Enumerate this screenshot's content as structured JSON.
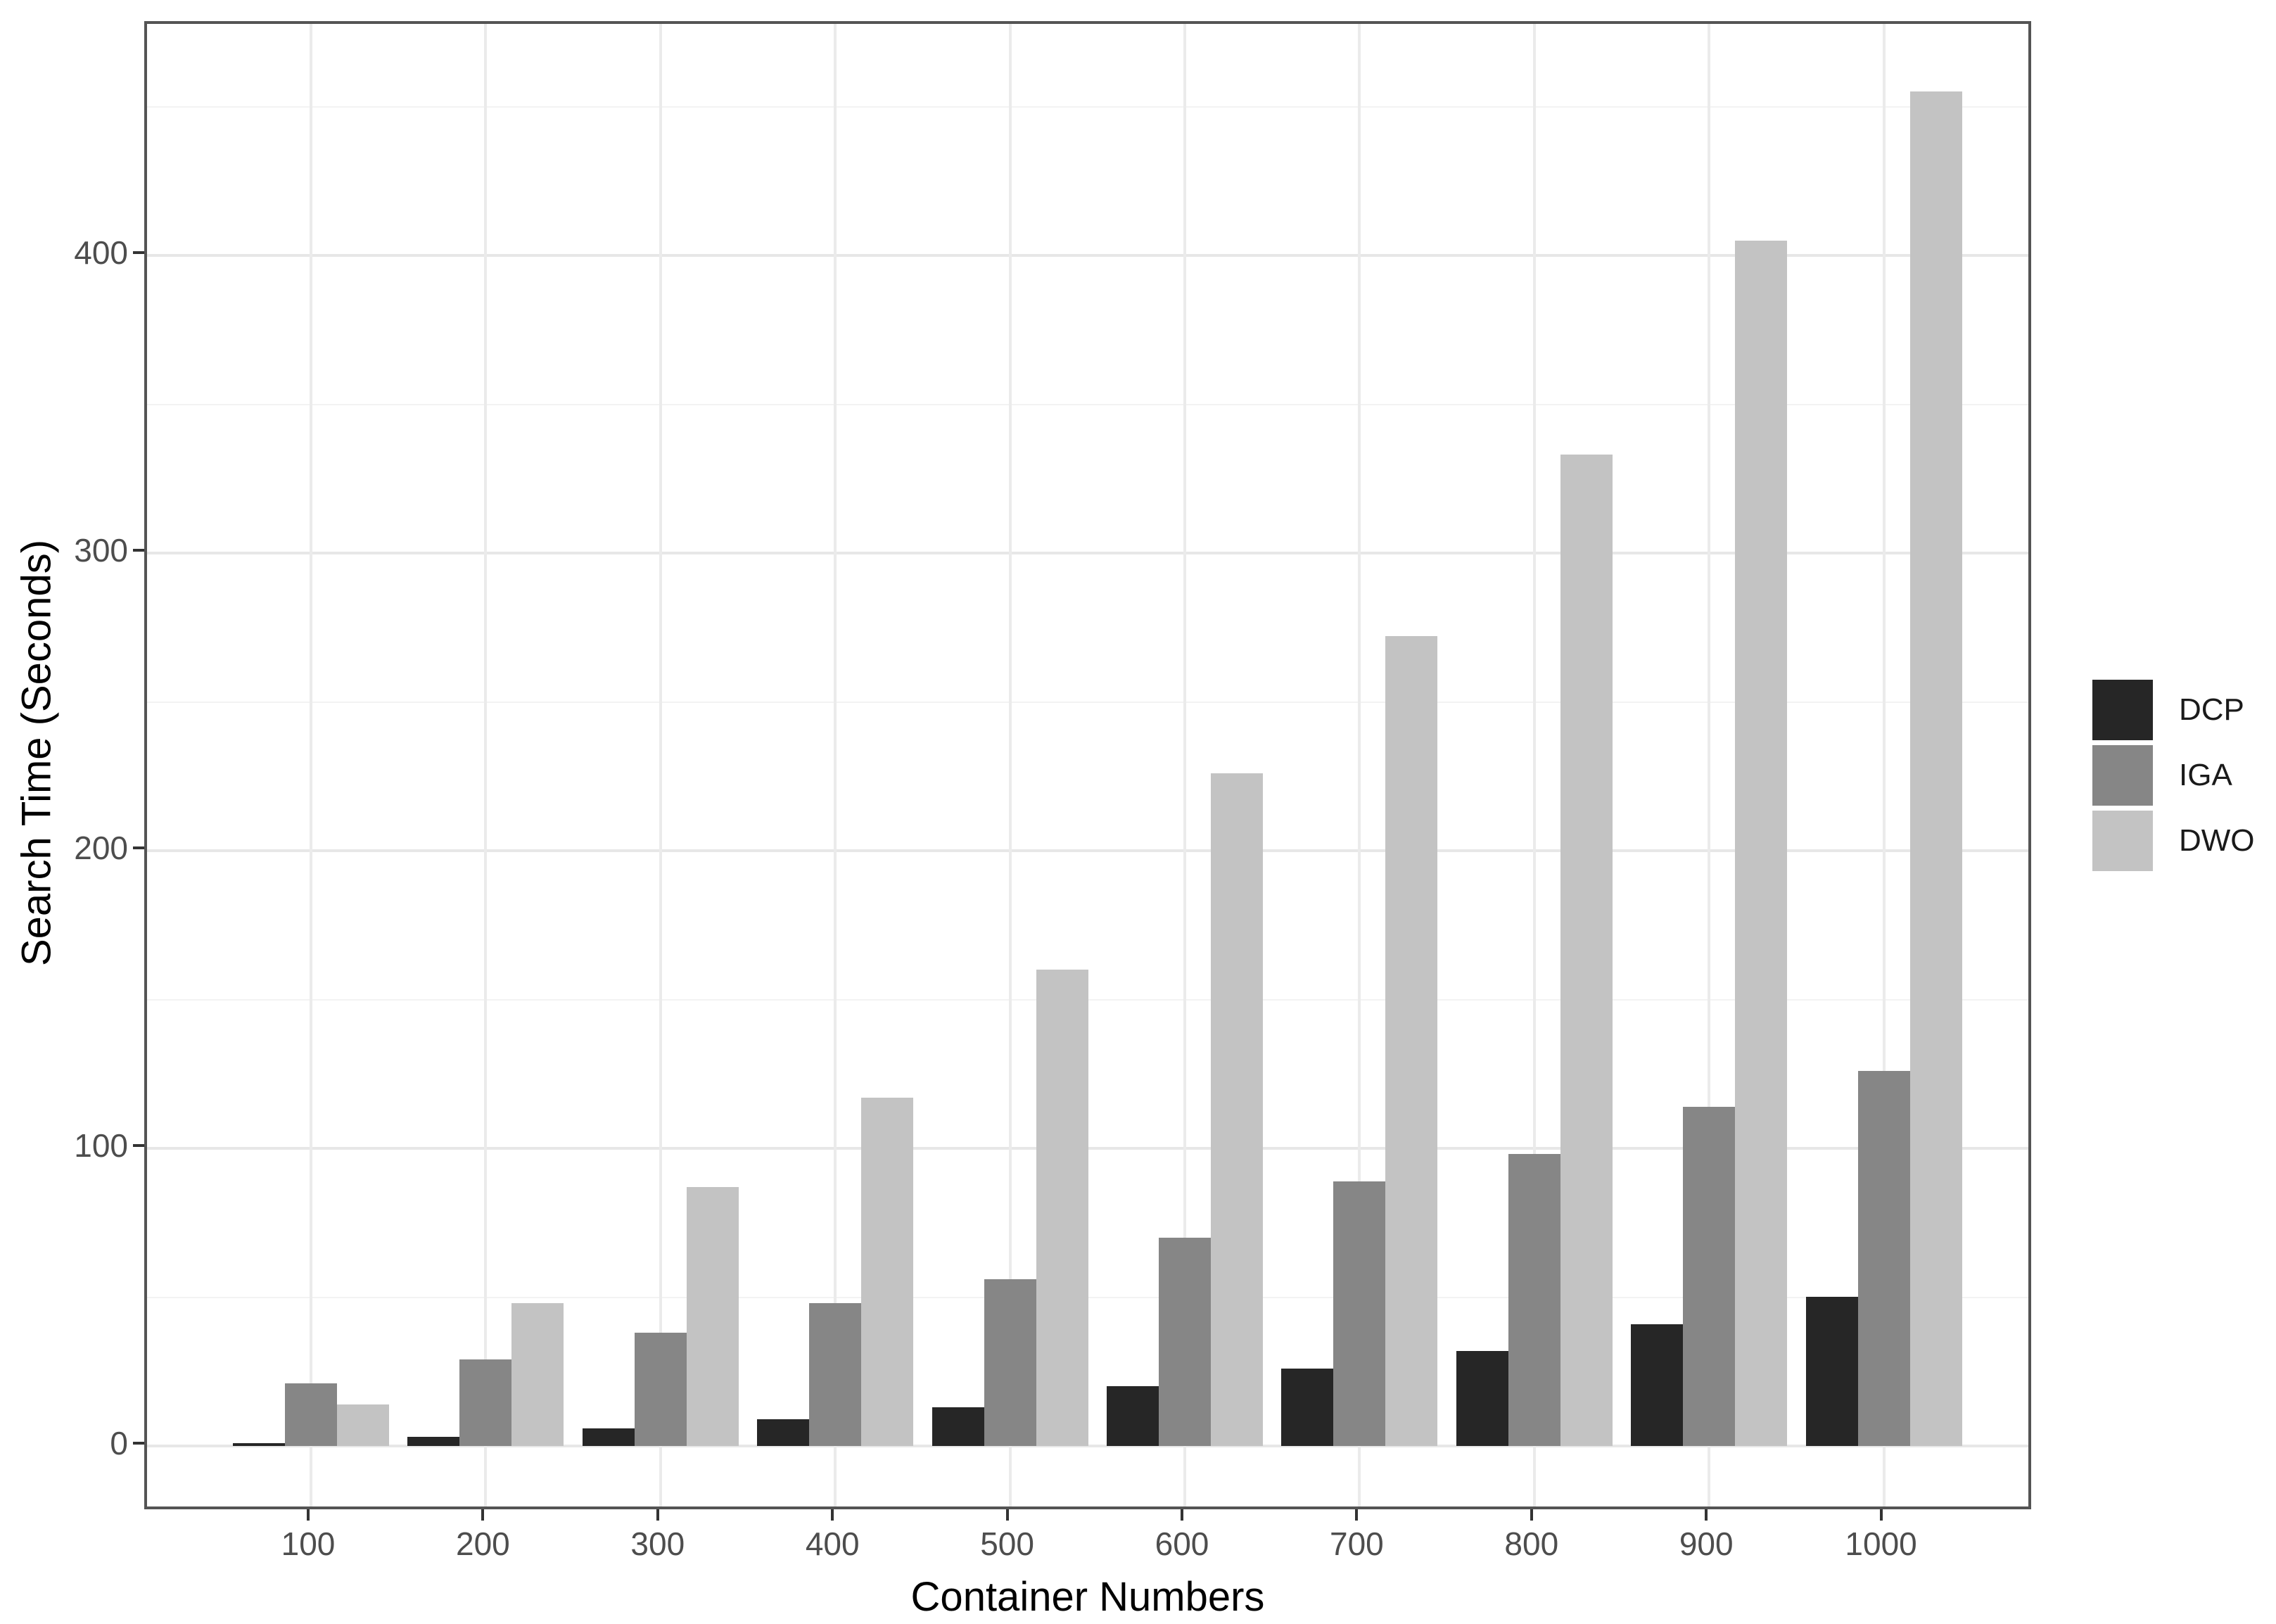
{
  "chart_data": {
    "type": "bar",
    "title": "",
    "xlabel": "Container Numbers",
    "ylabel": "Search Time (Seconds)",
    "categories": [
      "100",
      "200",
      "300",
      "400",
      "500",
      "600",
      "700",
      "800",
      "900",
      "1000"
    ],
    "series": [
      {
        "name": "DCP",
        "color": "#262626",
        "values": [
          1,
          3,
          6,
          9,
          13,
          20,
          26,
          32,
          41,
          50
        ]
      },
      {
        "name": "IGA",
        "color": "#868686",
        "values": [
          21,
          29,
          38,
          48,
          56,
          70,
          89,
          98,
          114,
          126
        ]
      },
      {
        "name": "DWO",
        "color": "#c3c3c3",
        "values": [
          14,
          48,
          87,
          117,
          160,
          226,
          272,
          333,
          405,
          455
        ]
      }
    ],
    "ylim": [
      0,
      477
    ],
    "yticks": [
      0,
      100,
      200,
      300,
      400
    ],
    "yticks_minor": [
      50,
      150,
      250,
      350,
      450
    ],
    "y_tick_labels": [
      "0",
      "100",
      "200",
      "300",
      "400"
    ],
    "grid": "horizontal major+minor, vertical major at categories",
    "legend_position": "right",
    "bar_layout": "dodged, 3 bars per group, no outline"
  },
  "legend": {
    "items": [
      {
        "label": "DCP",
        "color": "#262626"
      },
      {
        "label": "IGA",
        "color": "#868686"
      },
      {
        "label": "DWO",
        "color": "#c3c3c3"
      }
    ]
  },
  "colors": {
    "background": "#ffffff",
    "panel_border": "#545454",
    "grid_major": "#e7e7e7",
    "grid_minor": "#f3f3f3",
    "grid_vertical": "#ebebeb",
    "tick_mark": "#333333",
    "tick_label": "#4d4d4d",
    "axis_title": "#000000",
    "legend_text": "#1a1a1a"
  }
}
